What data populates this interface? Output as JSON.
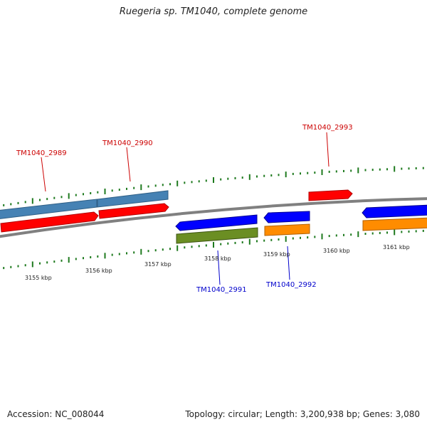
{
  "title": "Ruegeria sp. TM1040, complete genome",
  "footer": {
    "accession": "Accession: NC_008044",
    "summary": "Topology: circular; Length: 3,200,938 bp; Genes: 3,080"
  },
  "ticks": [
    "3155 kbp",
    "3156 kbp",
    "3157 kbp",
    "3158 kbp",
    "3159 kbp",
    "3160 kbp",
    "3161 kbp"
  ],
  "genes": [
    {
      "label": "TM1040_2989",
      "color": "#cc0000"
    },
    {
      "label": "TM1040_2990",
      "color": "#cc0000"
    },
    {
      "label": "TM1040_2991",
      "color": "#0000cc"
    },
    {
      "label": "TM1040_2992",
      "color": "#0000cc"
    },
    {
      "label": "TM1040_2993",
      "color": "#cc0000"
    }
  ],
  "colors": {
    "cds_forward": "#ff0000",
    "cds_reverse": "#0000ff",
    "gene_steelblue": "#4682b4",
    "gene_olive": "#6b8e23",
    "gene_orange": "#ff8c00",
    "backbone": "#808080",
    "tick_marks": "#006400"
  }
}
